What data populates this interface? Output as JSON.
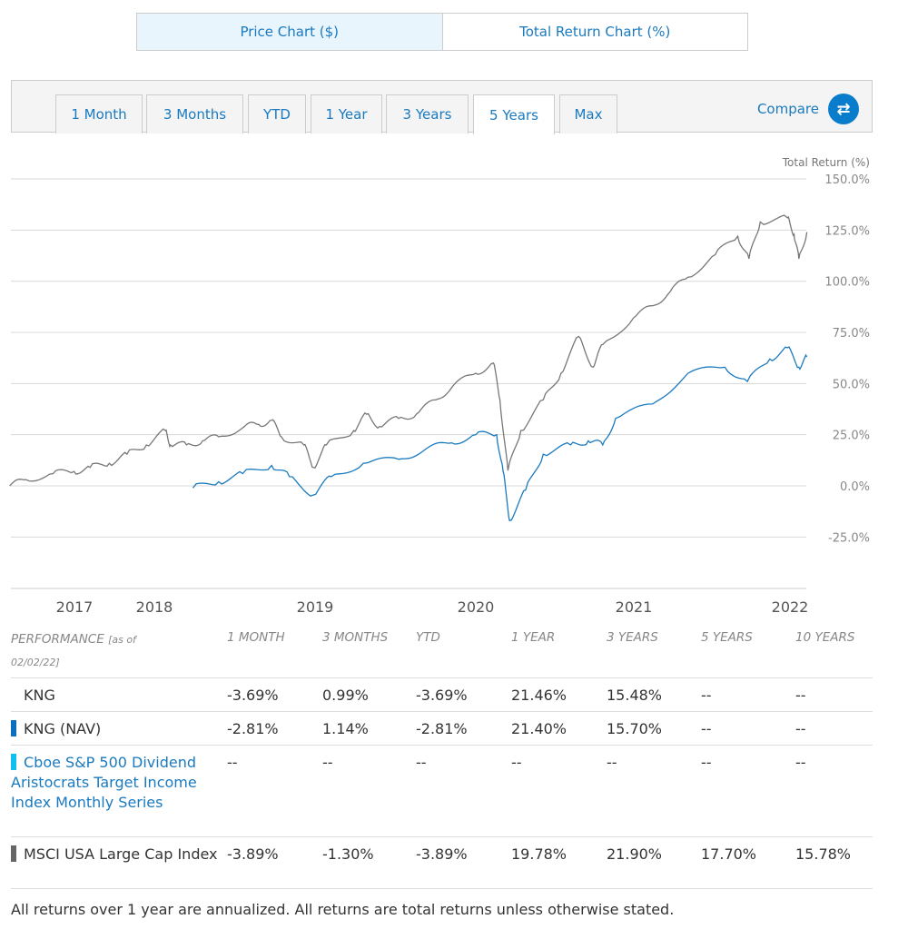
{
  "toggle": {
    "price": "Price Chart ($)",
    "total": "Total Return Chart (%)"
  },
  "tabs": [
    "1 Month",
    "3 Months",
    "YTD",
    "1 Year",
    "3 Years",
    "5 Years",
    "Max"
  ],
  "active_tab": "5 Years",
  "compare_label": "Compare",
  "compare_icon": "swap-arrows-icon",
  "chart_data": {
    "type": "line",
    "ylabel": "Total Return (%)",
    "ylim": [
      -45,
      150
    ],
    "yticks": [
      "150.0%",
      "125.0%",
      "100.0%",
      "75.0%",
      "50.0%",
      "25.0%",
      "0.0%",
      "-25.0%"
    ],
    "ytick_values": [
      150,
      125,
      100,
      75,
      50,
      25,
      0,
      -25
    ],
    "xticks": [
      "2017",
      "2018",
      "2019",
      "2020",
      "2021",
      "2022"
    ],
    "xtick_values": [
      2017.5,
      2018,
      2019,
      2020,
      2021,
      2022
    ],
    "xlim": [
      2017.1,
      2022.1
    ],
    "series": [
      {
        "name": "MSCI USA Large Cap Index",
        "color": "#777777",
        "points": [
          [
            2017.1,
            0
          ],
          [
            2017.2,
            3
          ],
          [
            2017.37,
            6
          ],
          [
            2017.5,
            7
          ],
          [
            2017.6,
            9
          ],
          [
            2017.72,
            11
          ],
          [
            2017.83,
            15.5
          ],
          [
            2017.95,
            20
          ],
          [
            2018.07,
            27
          ],
          [
            2018.1,
            20
          ],
          [
            2018.2,
            20
          ],
          [
            2018.3,
            22
          ],
          [
            2018.4,
            24
          ],
          [
            2018.56,
            29
          ],
          [
            2018.65,
            30
          ],
          [
            2018.73,
            32
          ],
          [
            2018.79,
            24
          ],
          [
            2018.93,
            20
          ],
          [
            2018.99,
            9
          ],
          [
            2019.07,
            20
          ],
          [
            2019.24,
            27
          ],
          [
            2019.32,
            35
          ],
          [
            2019.4,
            29
          ],
          [
            2019.52,
            33
          ],
          [
            2019.63,
            35
          ],
          [
            2019.75,
            42
          ],
          [
            2019.86,
            49
          ],
          [
            2020.0,
            55
          ],
          [
            2020.11,
            60
          ],
          [
            2020.15,
            42
          ],
          [
            2020.2,
            7.5
          ],
          [
            2020.28,
            27
          ],
          [
            2020.42,
            42
          ],
          [
            2020.53,
            55
          ],
          [
            2020.64,
            73
          ],
          [
            2020.73,
            58
          ],
          [
            2020.79,
            69
          ],
          [
            2020.98,
            82
          ],
          [
            2021.1,
            88
          ],
          [
            2021.21,
            95
          ],
          [
            2021.32,
            102
          ],
          [
            2021.49,
            113
          ],
          [
            2021.63,
            122
          ],
          [
            2021.7,
            111
          ],
          [
            2021.77,
            129
          ],
          [
            2021.94,
            131
          ],
          [
            2021.98,
            123
          ],
          [
            2022.01,
            111
          ],
          [
            2022.06,
            124
          ]
        ]
      },
      {
        "name": "KNG (NAV)",
        "color": "#1a7abf",
        "points": [
          [
            2018.24,
            -1
          ],
          [
            2018.4,
            2
          ],
          [
            2018.55,
            6
          ],
          [
            2018.73,
            10
          ],
          [
            2018.84,
            4.5
          ],
          [
            2018.99,
            -4.5
          ],
          [
            2019.1,
            4.5
          ],
          [
            2019.3,
            11
          ],
          [
            2019.52,
            13
          ],
          [
            2019.69,
            18
          ],
          [
            2019.85,
            21
          ],
          [
            2020.0,
            25
          ],
          [
            2020.13,
            25
          ],
          [
            2020.17,
            7
          ],
          [
            2020.21,
            -17
          ],
          [
            2020.31,
            -2
          ],
          [
            2020.42,
            15.5
          ],
          [
            2020.59,
            20
          ],
          [
            2020.7,
            22
          ],
          [
            2020.79,
            20
          ],
          [
            2020.87,
            33
          ],
          [
            2021.1,
            40
          ],
          [
            2021.32,
            55
          ],
          [
            2021.55,
            58
          ],
          [
            2021.69,
            51
          ],
          [
            2021.83,
            62
          ],
          [
            2021.94,
            67.5
          ],
          [
            2022.01,
            58
          ],
          [
            2022.06,
            63
          ]
        ]
      }
    ]
  },
  "table": {
    "header": {
      "performance": "PERFORMANCE",
      "asof": "[as of",
      "date": "02/02/22]",
      "cols": [
        "1 MONTH",
        "3 MONTHS",
        "YTD",
        "1 YEAR",
        "3 YEARS",
        "5 YEARS",
        "10 YEARS"
      ]
    },
    "rows": [
      {
        "name": "KNG",
        "values": [
          "-3.69%",
          "0.99%",
          "-3.69%",
          "21.46%",
          "15.48%",
          "--",
          "--"
        ]
      },
      {
        "name": "KNG (NAV)",
        "color": "#0a6fbf",
        "values": [
          "-2.81%",
          "1.14%",
          "-2.81%",
          "21.40%",
          "15.70%",
          "--",
          "--"
        ]
      },
      {
        "name": "Cboe S&P 500 Dividend Aristocrats Target Income Index Monthly Series",
        "color": "#12c0f0",
        "values": [
          "--",
          "--",
          "--",
          "--",
          "--",
          "--",
          "--"
        ]
      },
      {
        "name": "MSCI USA Large Cap Index",
        "color": "#666666",
        "values": [
          "-3.89%",
          "-1.30%",
          "-3.89%",
          "19.78%",
          "21.90%",
          "17.70%",
          "15.78%"
        ]
      }
    ]
  },
  "footnote": "All returns over 1 year are annualized. All returns are total returns unless otherwise stated."
}
